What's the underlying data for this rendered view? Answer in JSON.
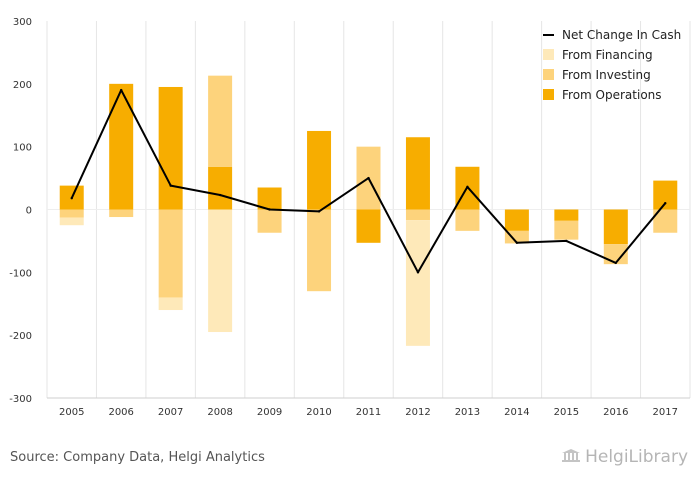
{
  "chart_data": {
    "type": "bar",
    "stacked": true,
    "categories": [
      "2005",
      "2006",
      "2007",
      "2008",
      "2009",
      "2010",
      "2011",
      "2012",
      "2013",
      "2014",
      "2015",
      "2016",
      "2017"
    ],
    "series": [
      {
        "name": "From Operations",
        "kind": "bar",
        "color": "#f7ad00",
        "values": [
          38,
          200,
          195,
          68,
          35,
          125,
          -53,
          115,
          68,
          -34,
          -18,
          -55,
          46
        ]
      },
      {
        "name": "From Investing",
        "kind": "bar",
        "color": "#fdd37c",
        "values": [
          -13,
          -12,
          -140,
          145,
          -37,
          -130,
          100,
          -17,
          -34,
          -20,
          -30,
          -32,
          -37
        ]
      },
      {
        "name": "From Financing",
        "kind": "bar",
        "color": "#fee9b9",
        "values": [
          -12,
          0,
          -20,
          -195,
          0,
          0,
          0,
          -200,
          0,
          0,
          0,
          0,
          0
        ]
      },
      {
        "name": "Net Change In Cash",
        "kind": "line",
        "color": "#000000",
        "values": [
          18,
          190,
          38,
          23,
          0,
          -3,
          50,
          -100,
          36,
          -53,
          -50,
          -85,
          10
        ]
      }
    ],
    "yticks": [
      300,
      200,
      100,
      0,
      -100,
      -200,
      -300
    ],
    "ylim": [
      -300,
      300
    ],
    "legend_position": "top-right",
    "grid": "vertical"
  },
  "legend": [
    {
      "name": "Net Change In Cash",
      "symbol": "line",
      "color": "#000000"
    },
    {
      "name": "From Financing",
      "symbol": "box",
      "color": "#fee9b9"
    },
    {
      "name": "From Investing",
      "symbol": "box",
      "color": "#fdd37c"
    },
    {
      "name": "From Operations",
      "symbol": "box",
      "color": "#f7ad00"
    }
  ],
  "footer": {
    "source": "Source: Company Data, Helgi Analytics",
    "brand": "HelgiLibrary"
  }
}
